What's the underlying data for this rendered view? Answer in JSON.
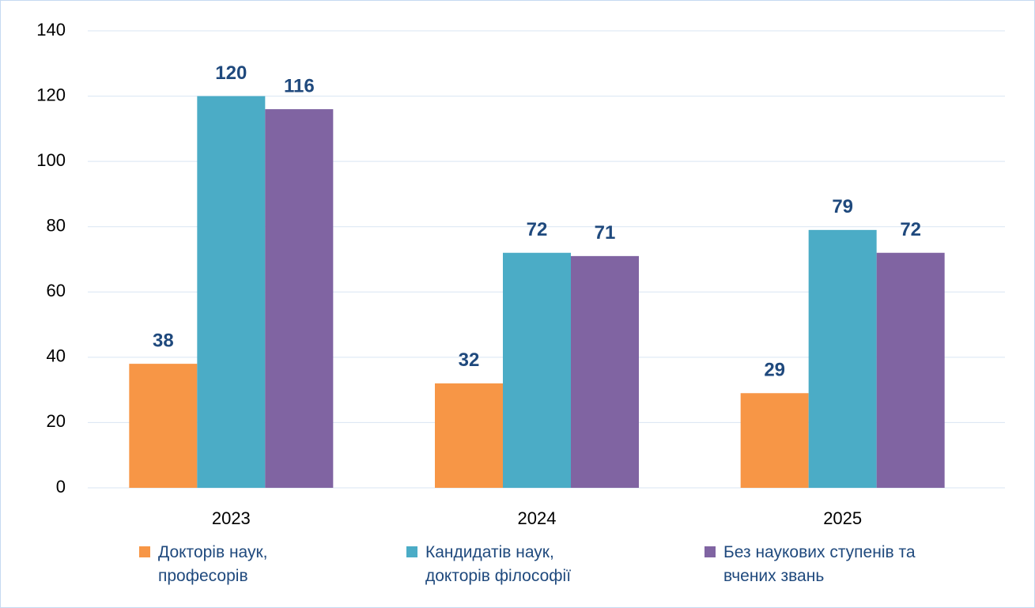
{
  "chart_data": {
    "type": "bar",
    "categories": [
      "2023",
      "2024",
      "2025"
    ],
    "series": [
      {
        "name": "Докторів наук, професорів",
        "color": "#f79646",
        "values": [
          38,
          32,
          29
        ]
      },
      {
        "name": "Кандидатів наук, докторів філософії",
        "color": "#4bacc6",
        "values": [
          120,
          72,
          79
        ]
      },
      {
        "name": "Без наукових ступенів та вчених звань",
        "color": "#8064a2",
        "values": [
          116,
          71,
          72
        ]
      }
    ],
    "ylim": [
      0,
      140
    ],
    "yticks": [
      0,
      20,
      40,
      60,
      80,
      100,
      120,
      140
    ],
    "grid": true,
    "legend": "bottom"
  }
}
